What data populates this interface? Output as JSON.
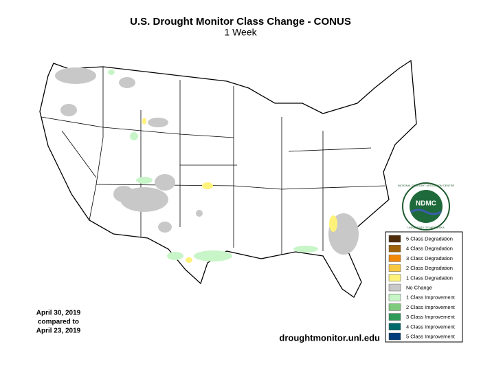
{
  "header": {
    "title": "U.S. Drought Monitor Class Change - CONUS",
    "subtitle": "1 Week"
  },
  "dates": [
    "April 30, 2019",
    "compared to",
    "April 23, 2019"
  ],
  "source": "droughtmonitor.unl.edu",
  "logo": {
    "label": "NDMC",
    "ring_top": "NATIONAL DROUGHT MITIGATION CENTER",
    "ring_bottom": "UNIVERSITY OF NEBRASKA"
  },
  "legend": [
    {
      "label": "5 Class Degradation",
      "color": "#4e2c0a"
    },
    {
      "label": "4 Class Degradation",
      "color": "#a0620a"
    },
    {
      "label": "3 Class Degradation",
      "color": "#f2880a"
    },
    {
      "label": "2 Class Degradation",
      "color": "#f8c840"
    },
    {
      "label": "1 Class Degradation",
      "color": "#fff27a"
    },
    {
      "label": "No Change",
      "color": "#c8c8c8"
    },
    {
      "label": "1 Class Improvement",
      "color": "#c8f5c8"
    },
    {
      "label": "2 Class Improvement",
      "color": "#7ecb7e"
    },
    {
      "label": "3 Class Improvement",
      "color": "#2e9b5a"
    },
    {
      "label": "4 Class Improvement",
      "color": "#006a6a"
    },
    {
      "label": "5 Class Improvement",
      "color": "#003c7a"
    }
  ]
}
